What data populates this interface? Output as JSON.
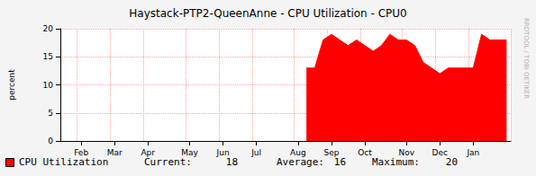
{
  "chart_data": {
    "type": "area",
    "title": "Haystack-PTP2-QueenAnne - CPU Utilization - CPU0",
    "ylabel": "percent",
    "side_text": "RRDTOOL / TOBI OETIKER",
    "categories": [
      null,
      null,
      "Feb",
      null,
      null,
      null,
      "Mar",
      null,
      null,
      null,
      "Apr",
      null,
      null,
      null,
      null,
      "May",
      null,
      null,
      null,
      "Jun",
      null,
      null,
      null,
      "Jul",
      null,
      null,
      null,
      null,
      "Aug",
      null,
      null,
      null,
      "Sep",
      null,
      null,
      null,
      "Oct",
      null,
      null,
      null,
      null,
      "Nov",
      null,
      null,
      null,
      "Dec",
      null,
      null,
      null,
      "Jan",
      null,
      null,
      null,
      null
    ],
    "series": [
      {
        "name": "CPU Utilization",
        "color": "#ff0000",
        "values": [
          null,
          null,
          null,
          null,
          null,
          null,
          null,
          null,
          null,
          null,
          null,
          null,
          null,
          null,
          null,
          null,
          null,
          null,
          null,
          null,
          null,
          null,
          null,
          null,
          null,
          null,
          null,
          null,
          null,
          13,
          13,
          18,
          19,
          18,
          17,
          18,
          17,
          16,
          17,
          19,
          18,
          18,
          17,
          14,
          13,
          12,
          13,
          13,
          13,
          13,
          19,
          18,
          18,
          18
        ]
      }
    ],
    "stats": [
      {
        "label": "Current:",
        "value": 18
      },
      {
        "label": "Average:",
        "value": 16
      },
      {
        "label": "Maximum:",
        "value": 20
      }
    ],
    "ylim": [
      0,
      20
    ],
    "yticks": [
      0,
      5,
      10,
      15,
      20
    ],
    "grid": true
  }
}
